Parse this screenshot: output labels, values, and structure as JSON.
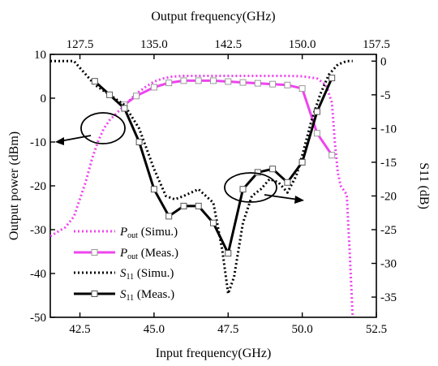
{
  "chart_data": {
    "type": "line",
    "x_axis": {
      "label": "Input frequency(GHz)",
      "range": [
        41.5,
        52.5
      ],
      "ticks": [
        "42.5",
        "45.0",
        "47.5",
        "50.0",
        "52.5"
      ]
    },
    "x2_axis": {
      "label": "Output frequency(GHz)",
      "range": [
        124.5,
        157.5
      ],
      "ticks": [
        "127.5",
        "135.0",
        "142.5",
        "150.0",
        "157.5"
      ]
    },
    "y_axis": {
      "label": "Output power (dBm)",
      "range": [
        -50,
        10
      ],
      "ticks": [
        "10",
        "0",
        "-10",
        "-20",
        "-30",
        "-40",
        "-50"
      ]
    },
    "y2_axis": {
      "label": "S11 (dB)",
      "range": [
        -38,
        1
      ],
      "ticks": [
        "0",
        "-5",
        "-10",
        "-15",
        "-20",
        "-25",
        "-30",
        "-35"
      ]
    },
    "legend_position": "bottom-left",
    "series": [
      {
        "name_main": "P",
        "name_sub": "out",
        "name_rest": " (Simu.)",
        "axis": "left",
        "color": "#ee44ee",
        "style": "dotted",
        "width": 3,
        "markers": false,
        "x": [
          41.5,
          42.0,
          42.3,
          42.5,
          42.7,
          42.9,
          43.1,
          43.3,
          43.5,
          43.8,
          44.1,
          44.4,
          44.7,
          45.0,
          45.3,
          45.6,
          46.0,
          46.5,
          47.0,
          47.5,
          48.0,
          48.5,
          49.0,
          49.5,
          50.0,
          50.5,
          50.8,
          51.0,
          51.1,
          51.2,
          51.3,
          51.5,
          51.6,
          51.7
        ],
        "y": [
          -31.5,
          -29.5,
          -27,
          -23,
          -19,
          -14,
          -10,
          -7,
          -5,
          -3,
          -1,
          1,
          2.5,
          3.8,
          4.5,
          4.9,
          5.1,
          5.1,
          5.1,
          5.1,
          5.1,
          5.1,
          5.1,
          5.1,
          5.0,
          4.5,
          3.0,
          -1,
          -10,
          -17,
          -20,
          -22,
          -35,
          -50
        ]
      },
      {
        "name_main": "P",
        "name_sub": "out",
        "name_rest": " (Meas.)",
        "axis": "left",
        "color": "#ee44ee",
        "style": "solid",
        "width": 3,
        "markers": true,
        "x": [
          44.0,
          44.4,
          45.0,
          45.5,
          46.0,
          46.5,
          47.0,
          47.5,
          48.0,
          48.5,
          49.0,
          49.5,
          50.0,
          50.5,
          51.0
        ],
        "y": [
          -1.5,
          0.5,
          2.5,
          3.5,
          4.0,
          4.0,
          4.0,
          3.8,
          3.6,
          3.4,
          3.2,
          3.0,
          2.2,
          -8.0,
          -13.0
        ]
      },
      {
        "name_main": "S",
        "name_sub": "11",
        "name_rest": " (Simu.)",
        "axis": "right",
        "color": "#000000",
        "style": "dotted",
        "width": 3,
        "markers": false,
        "x": [
          41.5,
          42.0,
          42.3,
          42.5,
          42.7,
          43.0,
          43.5,
          44.0,
          44.5,
          45.0,
          45.4,
          45.7,
          46.0,
          46.5,
          47.0,
          47.3,
          47.5,
          47.7,
          48.0,
          48.3,
          48.6,
          48.9,
          49.2,
          49.5,
          49.8,
          50.0,
          50.3,
          50.6,
          50.9,
          51.2,
          51.5,
          51.7
        ],
        "y": [
          0,
          0,
          0,
          -1,
          -2,
          -3.5,
          -5,
          -6.5,
          -10,
          -16,
          -20,
          -20.5,
          -20,
          -19,
          -21,
          -28,
          -34.5,
          -32,
          -24,
          -20,
          -19,
          -17.5,
          -18,
          -19.5,
          -17,
          -14,
          -9,
          -5,
          -2,
          -0.5,
          0,
          0
        ]
      },
      {
        "name_main": "S",
        "name_sub": "11",
        "name_rest": " (Meas.)",
        "axis": "right",
        "color": "#000000",
        "style": "solid",
        "width": 3,
        "markers": true,
        "x": [
          43.0,
          43.5,
          44.0,
          44.5,
          45.0,
          45.5,
          46.0,
          46.5,
          47.0,
          47.5,
          48.0,
          48.5,
          49.0,
          49.5,
          50.0,
          50.5,
          51.0
        ],
        "y": [
          -3,
          -5,
          -7,
          -12,
          -19,
          -23,
          -21.5,
          -21.5,
          -24,
          -28.5,
          -19,
          -16.5,
          -16,
          -18,
          -15,
          -7.5,
          -2.5
        ]
      }
    ]
  }
}
